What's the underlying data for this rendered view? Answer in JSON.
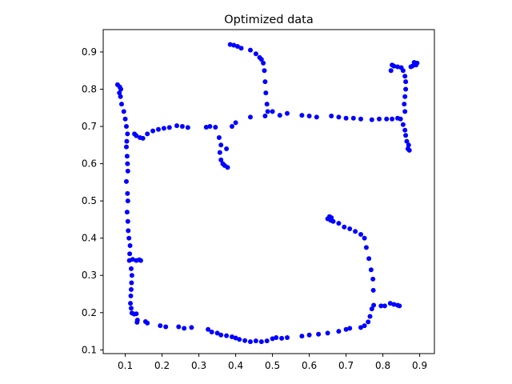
{
  "chart_data": {
    "type": "scatter",
    "title": "Optimized data",
    "xlabel": "",
    "ylabel": "",
    "xlim": [
      0.04,
      0.94
    ],
    "ylim": [
      0.09,
      0.96
    ],
    "xticks": [
      0.1,
      0.2,
      0.3,
      0.4,
      0.5,
      0.6,
      0.7,
      0.8,
      0.9
    ],
    "xtick_labels": [
      "0.1",
      "0.2",
      "0.3",
      "0.4",
      "0.5",
      "0.6",
      "0.7",
      "0.8",
      "0.9"
    ],
    "yticks": [
      0.1,
      0.2,
      0.3,
      0.4,
      0.5,
      0.6,
      0.7,
      0.8,
      0.9
    ],
    "ytick_labels": [
      "0.1",
      "0.2",
      "0.3",
      "0.4",
      "0.5",
      "0.6",
      "0.7",
      "0.8",
      "0.9"
    ],
    "grid": false,
    "legend": "none",
    "series": [
      {
        "color": "#0000ff",
        "marker": "circle",
        "points": [
          [
            0.079,
            0.812
          ],
          [
            0.085,
            0.806
          ],
          [
            0.088,
            0.8
          ],
          [
            0.084,
            0.79
          ],
          [
            0.087,
            0.78
          ],
          [
            0.09,
            0.76
          ],
          [
            0.096,
            0.74
          ],
          [
            0.1,
            0.72
          ],
          [
            0.103,
            0.7
          ],
          [
            0.106,
            0.68
          ],
          [
            0.104,
            0.66
          ],
          [
            0.103,
            0.645
          ],
          [
            0.105,
            0.62
          ],
          [
            0.106,
            0.6
          ],
          [
            0.107,
            0.58
          ],
          [
            0.103,
            0.552
          ],
          [
            0.106,
            0.52
          ],
          [
            0.107,
            0.5
          ],
          [
            0.105,
            0.47
          ],
          [
            0.107,
            0.445
          ],
          [
            0.108,
            0.42
          ],
          [
            0.11,
            0.4
          ],
          [
            0.113,
            0.38
          ],
          [
            0.112,
            0.358
          ],
          [
            0.111,
            0.34
          ],
          [
            0.12,
            0.343
          ],
          [
            0.13,
            0.34
          ],
          [
            0.138,
            0.342
          ],
          [
            0.142,
            0.34
          ],
          [
            0.116,
            0.318
          ],
          [
            0.118,
            0.3
          ],
          [
            0.117,
            0.28
          ],
          [
            0.116,
            0.262
          ],
          [
            0.115,
            0.245
          ],
          [
            0.114,
            0.225
          ],
          [
            0.116,
            0.212
          ],
          [
            0.118,
            0.199
          ],
          [
            0.124,
            0.196
          ],
          [
            0.13,
            0.197
          ],
          [
            0.133,
            0.18
          ],
          [
            0.132,
            0.174
          ],
          [
            0.155,
            0.176
          ],
          [
            0.16,
            0.172
          ],
          [
            0.195,
            0.165
          ],
          [
            0.21,
            0.162
          ],
          [
            0.245,
            0.162
          ],
          [
            0.26,
            0.158
          ],
          [
            0.28,
            0.16
          ],
          [
            0.325,
            0.155
          ],
          [
            0.335,
            0.148
          ],
          [
            0.35,
            0.145
          ],
          [
            0.36,
            0.14
          ],
          [
            0.375,
            0.138
          ],
          [
            0.39,
            0.135
          ],
          [
            0.4,
            0.132
          ],
          [
            0.41,
            0.128
          ],
          [
            0.425,
            0.125
          ],
          [
            0.44,
            0.122
          ],
          [
            0.455,
            0.124
          ],
          [
            0.47,
            0.122
          ],
          [
            0.485,
            0.124
          ],
          [
            0.5,
            0.13
          ],
          [
            0.51,
            0.133
          ],
          [
            0.525,
            0.131
          ],
          [
            0.54,
            0.133
          ],
          [
            0.58,
            0.137
          ],
          [
            0.6,
            0.14
          ],
          [
            0.625,
            0.142
          ],
          [
            0.65,
            0.145
          ],
          [
            0.68,
            0.15
          ],
          [
            0.7,
            0.155
          ],
          [
            0.71,
            0.158
          ],
          [
            0.74,
            0.16
          ],
          [
            0.75,
            0.165
          ],
          [
            0.76,
            0.175
          ],
          [
            0.765,
            0.19
          ],
          [
            0.77,
            0.21
          ],
          [
            0.775,
            0.22
          ],
          [
            0.795,
            0.218
          ],
          [
            0.805,
            0.218
          ],
          [
            0.82,
            0.225
          ],
          [
            0.83,
            0.222
          ],
          [
            0.84,
            0.22
          ],
          [
            0.845,
            0.218
          ],
          [
            0.774,
            0.26
          ],
          [
            0.773,
            0.29
          ],
          [
            0.768,
            0.315
          ],
          [
            0.762,
            0.345
          ],
          [
            0.755,
            0.375
          ],
          [
            0.75,
            0.4
          ],
          [
            0.74,
            0.41
          ],
          [
            0.725,
            0.418
          ],
          [
            0.71,
            0.425
          ],
          [
            0.695,
            0.43
          ],
          [
            0.68,
            0.44
          ],
          [
            0.665,
            0.445
          ],
          [
            0.65,
            0.452
          ],
          [
            0.655,
            0.458
          ],
          [
            0.66,
            0.455
          ],
          [
            0.658,
            0.448
          ],
          [
            0.125,
            0.68
          ],
          [
            0.13,
            0.675
          ],
          [
            0.14,
            0.67
          ],
          [
            0.148,
            0.668
          ],
          [
            0.16,
            0.68
          ],
          [
            0.175,
            0.688
          ],
          [
            0.19,
            0.692
          ],
          [
            0.205,
            0.695
          ],
          [
            0.22,
            0.697
          ],
          [
            0.24,
            0.702
          ],
          [
            0.255,
            0.7
          ],
          [
            0.27,
            0.697
          ],
          [
            0.32,
            0.698
          ],
          [
            0.33,
            0.7
          ],
          [
            0.345,
            0.698
          ],
          [
            0.355,
            0.67
          ],
          [
            0.36,
            0.65
          ],
          [
            0.357,
            0.63
          ],
          [
            0.36,
            0.61
          ],
          [
            0.365,
            0.6
          ],
          [
            0.37,
            0.595
          ],
          [
            0.378,
            0.59
          ],
          [
            0.375,
            0.64
          ],
          [
            0.39,
            0.7
          ],
          [
            0.4,
            0.71
          ],
          [
            0.44,
            0.725
          ],
          [
            0.48,
            0.728
          ],
          [
            0.5,
            0.74
          ],
          [
            0.52,
            0.73
          ],
          [
            0.54,
            0.735
          ],
          [
            0.58,
            0.73
          ],
          [
            0.6,
            0.728
          ],
          [
            0.62,
            0.725
          ],
          [
            0.66,
            0.728
          ],
          [
            0.68,
            0.725
          ],
          [
            0.7,
            0.722
          ],
          [
            0.72,
            0.722
          ],
          [
            0.74,
            0.72
          ],
          [
            0.77,
            0.718
          ],
          [
            0.79,
            0.72
          ],
          [
            0.81,
            0.72
          ],
          [
            0.825,
            0.72
          ],
          [
            0.84,
            0.722
          ],
          [
            0.848,
            0.72
          ],
          [
            0.855,
            0.705
          ],
          [
            0.86,
            0.69
          ],
          [
            0.862,
            0.676
          ],
          [
            0.865,
            0.66
          ],
          [
            0.87,
            0.65
          ],
          [
            0.868,
            0.64
          ],
          [
            0.872,
            0.636
          ],
          [
            0.86,
            0.74
          ],
          [
            0.858,
            0.76
          ],
          [
            0.86,
            0.78
          ],
          [
            0.862,
            0.8
          ],
          [
            0.862,
            0.82
          ],
          [
            0.86,
            0.835
          ],
          [
            0.855,
            0.85
          ],
          [
            0.85,
            0.858
          ],
          [
            0.84,
            0.86
          ],
          [
            0.83,
            0.862
          ],
          [
            0.822,
            0.85
          ],
          [
            0.825,
            0.865
          ],
          [
            0.88,
            0.862
          ],
          [
            0.89,
            0.865
          ],
          [
            0.893,
            0.87
          ],
          [
            0.885,
            0.872
          ],
          [
            0.876,
            0.86
          ],
          [
            0.385,
            0.92
          ],
          [
            0.395,
            0.918
          ],
          [
            0.405,
            0.915
          ],
          [
            0.415,
            0.91
          ],
          [
            0.44,
            0.905
          ],
          [
            0.455,
            0.895
          ],
          [
            0.465,
            0.885
          ],
          [
            0.47,
            0.88
          ],
          [
            0.475,
            0.87
          ],
          [
            0.478,
            0.85
          ],
          [
            0.48,
            0.82
          ],
          [
            0.482,
            0.79
          ],
          [
            0.485,
            0.76
          ],
          [
            0.487,
            0.74
          ]
        ]
      }
    ]
  }
}
